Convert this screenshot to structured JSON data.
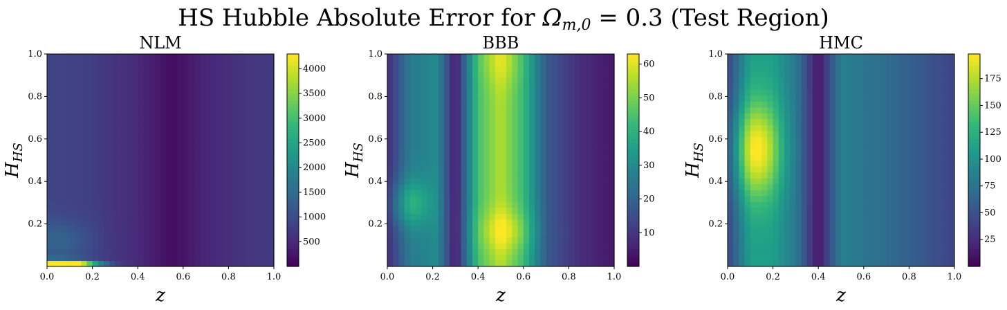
{
  "figure": {
    "title_main": "HS Hubble Absolute Error for ",
    "title_omega": "Ω",
    "title_sub": "m,0",
    "title_tail": " = 0.3 (Test Region)"
  },
  "colors": {
    "viridis": [
      "#440154",
      "#482878",
      "#3e4989",
      "#31688e",
      "#26828e",
      "#1f9e89",
      "#35b779",
      "#6ece58",
      "#b5de2b",
      "#fde725"
    ]
  },
  "chart_data": [
    {
      "type": "heatmap",
      "title": "NLM",
      "xlabel": "z",
      "ylabel": "H_HS",
      "xlim": [
        0,
        1
      ],
      "ylim": [
        0,
        1
      ],
      "xticks": [
        "0.0",
        "0.2",
        "0.4",
        "0.6",
        "0.8",
        "1.0"
      ],
      "yticks": [
        "0.2",
        "0.4",
        "0.6",
        "0.8",
        "1.0"
      ],
      "colorbar": {
        "range": [
          0,
          4300
        ],
        "ticks": [
          500,
          1000,
          1500,
          2000,
          2500,
          3000,
          3500,
          4000
        ]
      },
      "field": {
        "base": {
          "x": [
            0.0,
            0.2,
            0.4,
            0.55,
            0.7,
            0.9,
            1.0
          ],
          "v": [
            900,
            800,
            500,
            150,
            450,
            700,
            750
          ]
        },
        "spots": [
          {
            "x": 0.0,
            "y": 0.01,
            "sx": 0.12,
            "sy": 0.015,
            "a": 2800
          },
          {
            "x": 0.12,
            "y": 0.008,
            "sx": 0.08,
            "sy": 0.006,
            "a": 3500
          },
          {
            "x": 0.05,
            "y": 0.12,
            "sx": 0.1,
            "sy": 0.07,
            "a": 500
          }
        ]
      }
    },
    {
      "type": "heatmap",
      "title": "BBB",
      "xlabel": "z",
      "ylabel": "H_HS",
      "xlim": [
        0,
        1
      ],
      "ylim": [
        0,
        1
      ],
      "xticks": [
        "0.0",
        "0.2",
        "0.4",
        "0.6",
        "0.8",
        "1.0"
      ],
      "yticks": [
        "0.2",
        "0.4",
        "0.6",
        "0.8",
        "1.0"
      ],
      "colorbar": {
        "range": [
          0,
          63
        ],
        "ticks": [
          10,
          20,
          30,
          40,
          50,
          60
        ]
      },
      "field": {
        "base": {
          "x": [
            0.0,
            0.1,
            0.22,
            0.3,
            0.4,
            0.5,
            0.6,
            0.7,
            0.85,
            1.0
          ],
          "v": [
            8,
            26,
            30,
            4,
            44,
            56,
            42,
            18,
            8,
            4
          ]
        },
        "spots": [
          {
            "x": 0.1,
            "y": 0.3,
            "sx": 0.06,
            "sy": 0.08,
            "a": 14
          },
          {
            "x": 0.52,
            "y": 0.17,
            "sx": 0.08,
            "sy": 0.07,
            "a": 10
          },
          {
            "x": 0.5,
            "y": 0.97,
            "sx": 0.06,
            "sy": 0.08,
            "a": 6
          }
        ]
      }
    },
    {
      "type": "heatmap",
      "title": "HMC",
      "xlabel": "z",
      "ylabel": "H_HS",
      "xlim": [
        0,
        1
      ],
      "ylim": [
        0,
        1
      ],
      "xticks": [
        "0.0",
        "0.2",
        "0.4",
        "0.6",
        "0.8",
        "1.0"
      ],
      "yticks": [
        "0.2",
        "0.4",
        "0.6",
        "0.8",
        "1.0"
      ],
      "colorbar": {
        "range": [
          0,
          198
        ],
        "ticks": [
          25,
          50,
          75,
          100,
          125,
          150,
          175
        ]
      },
      "field": {
        "base": {
          "x": [
            0.0,
            0.1,
            0.2,
            0.3,
            0.4,
            0.5,
            0.7,
            0.9,
            1.0
          ],
          "v": [
            40,
            110,
            110,
            80,
            10,
            85,
            70,
            50,
            40
          ]
        },
        "spots": [
          {
            "x": 0.13,
            "y": 0.55,
            "sx": 0.07,
            "sy": 0.16,
            "a": 90
          }
        ]
      }
    }
  ]
}
